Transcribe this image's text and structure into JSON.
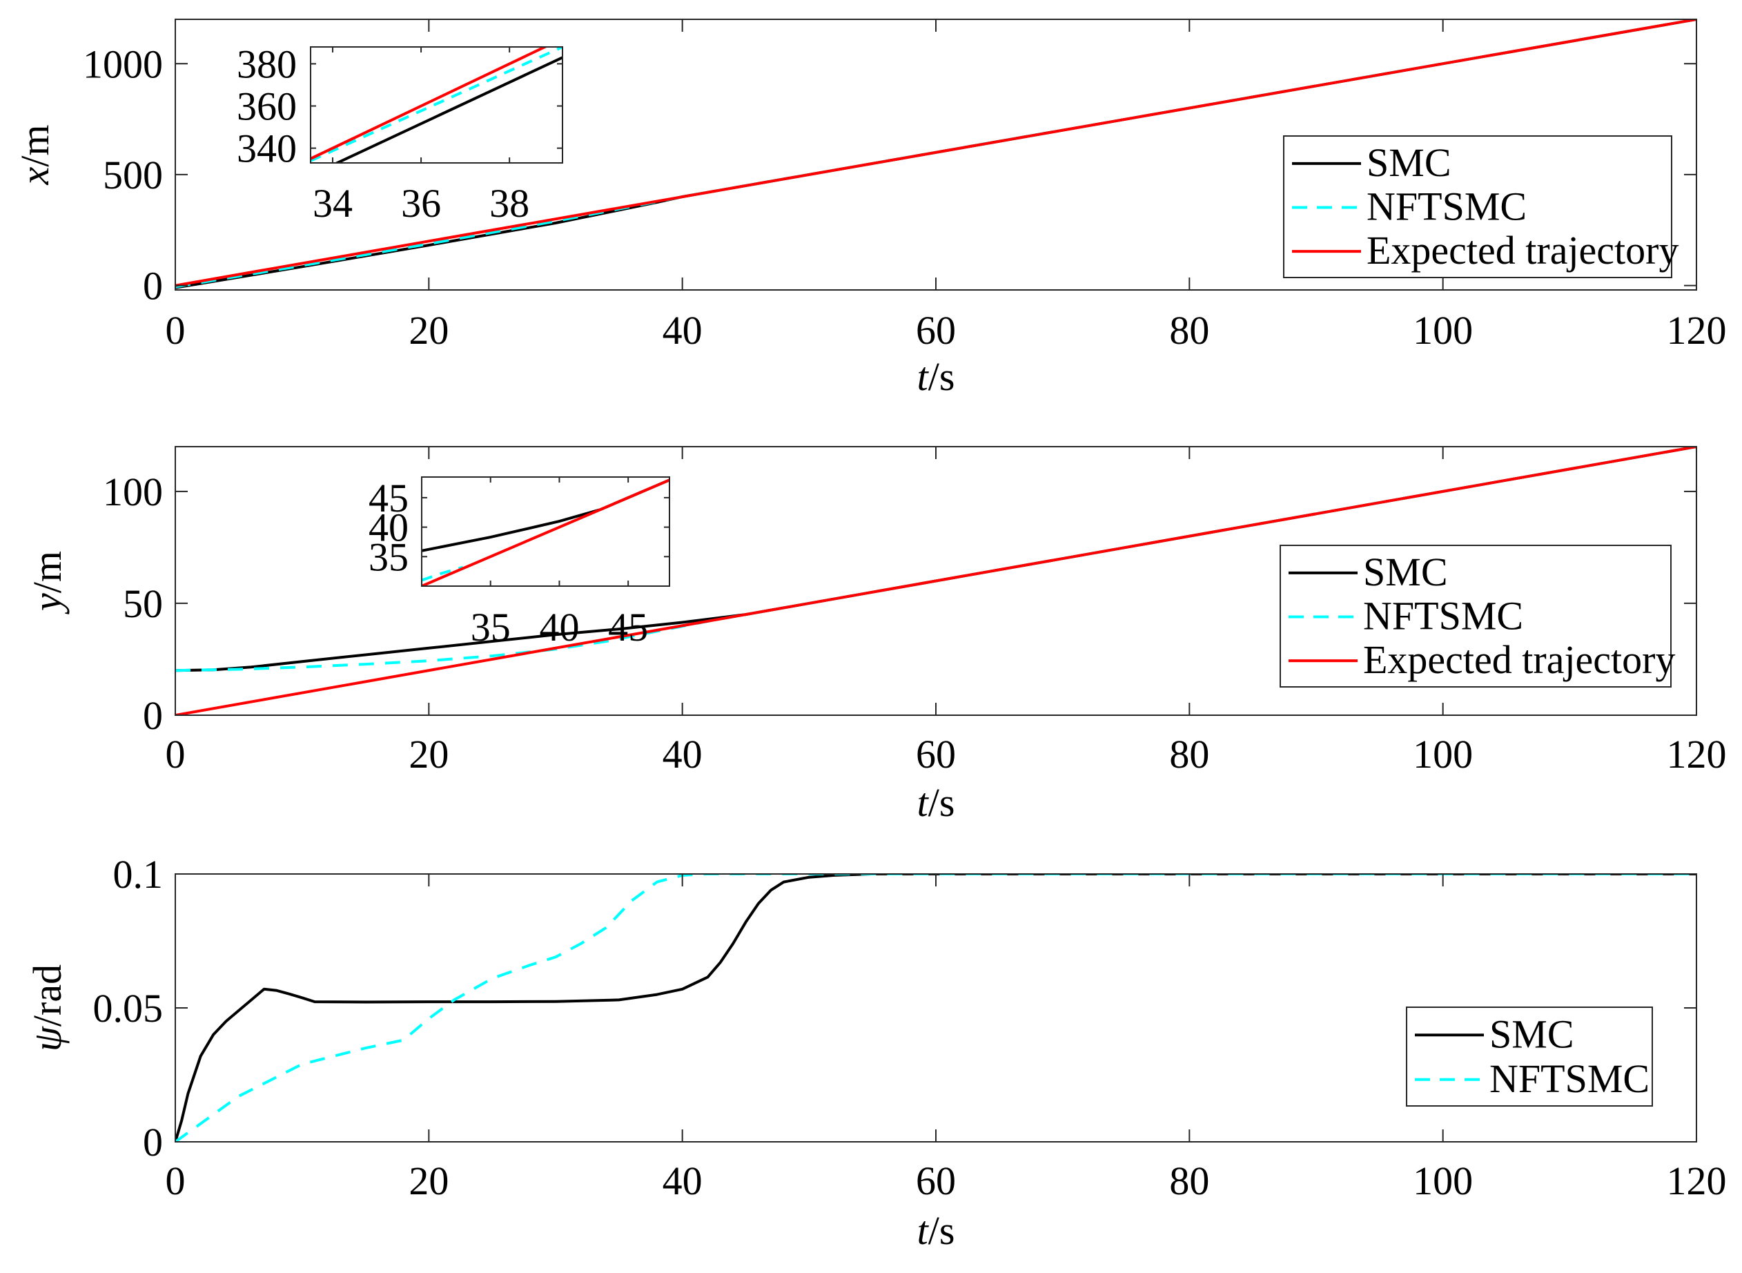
{
  "chart_data": [
    {
      "type": "line",
      "id": "x",
      "ylabel_var": "x",
      "ylabel_unit": "m",
      "xlabel_var": "t",
      "xlabel_unit": "s",
      "xlim": [
        0,
        120
      ],
      "ylim": [
        -20,
        1200
      ],
      "xticks": [
        0,
        20,
        40,
        60,
        80,
        100,
        120
      ],
      "yticks": [
        0,
        500,
        1000
      ],
      "legend": {
        "position": "right",
        "entries": [
          "SMC",
          "NFTSMC",
          "Expected trajectory"
        ]
      },
      "series": [
        {
          "name": "SMC",
          "color": "#000000",
          "dash": "solid",
          "x": [
            0,
            10,
            20,
            30,
            38,
            40,
            120
          ],
          "y": [
            -10,
            85,
            182,
            282,
            375,
            400,
            1200
          ]
        },
        {
          "name": "NFTSMC",
          "color": "#00ffff",
          "dash": "dashed",
          "x": [
            0,
            10,
            20,
            30,
            38,
            40,
            120
          ],
          "y": [
            -6,
            90,
            188,
            290,
            378,
            400,
            1200
          ]
        },
        {
          "name": "Expected trajectory",
          "color": "#ff0000",
          "dash": "solid",
          "x": [
            0,
            120
          ],
          "y": [
            0,
            1200
          ]
        }
      ],
      "inset": {
        "xlim": [
          33.5,
          39.2
        ],
        "ylim": [
          333,
          388
        ],
        "xticks": [
          34,
          36,
          38
        ],
        "yticks": [
          340,
          360,
          380
        ],
        "series": [
          {
            "name": "SMC",
            "x": [
              34,
              39.2
            ],
            "y": [
              332,
              383
            ]
          },
          {
            "name": "NFTSMC",
            "x": [
              33.5,
              39.2
            ],
            "y": [
              334,
              388
            ]
          },
          {
            "name": "Expected trajectory",
            "x": [
              33.5,
              39.2
            ],
            "y": [
              335,
              392
            ]
          }
        ]
      }
    },
    {
      "type": "line",
      "id": "y",
      "ylabel_var": "y",
      "ylabel_unit": "m",
      "xlabel_var": "t",
      "xlabel_unit": "s",
      "xlim": [
        0,
        120
      ],
      "ylim": [
        0,
        120
      ],
      "xticks": [
        0,
        20,
        40,
        60,
        80,
        100,
        120
      ],
      "yticks": [
        0,
        50,
        100
      ],
      "legend": {
        "position": "right",
        "entries": [
          "SMC",
          "NFTSMC",
          "Expected trajectory"
        ]
      },
      "series": [
        {
          "name": "SMC",
          "color": "#000000",
          "dash": "solid",
          "x": [
            0,
            3,
            6,
            10,
            15,
            20,
            25,
            30,
            35,
            40,
            45,
            48,
            120
          ],
          "y": [
            20,
            20.3,
            21.5,
            24,
            27,
            30,
            33,
            36,
            38.5,
            41.5,
            45,
            48,
            120
          ]
        },
        {
          "name": "NFTSMC",
          "color": "#00ffff",
          "dash": "dashed",
          "x": [
            0,
            5,
            10,
            15,
            20,
            25,
            30,
            34,
            38,
            42,
            45,
            48,
            120
          ],
          "y": [
            20,
            20.5,
            21.5,
            22.8,
            24.3,
            26.5,
            29.5,
            33,
            37.5,
            42,
            45,
            48,
            120
          ]
        },
        {
          "name": "Expected trajectory",
          "color": "#ff0000",
          "dash": "solid",
          "x": [
            0,
            120
          ],
          "y": [
            0,
            120
          ]
        }
      ],
      "inset": {
        "xlim": [
          30,
          48
        ],
        "ylim": [
          30,
          48.5
        ],
        "xticks": [
          35,
          40,
          45
        ],
        "yticks": [
          35,
          40,
          45
        ],
        "series": [
          {
            "name": "SMC",
            "x": [
              30,
              35,
              40,
              43,
              45,
              47,
              48
            ],
            "y": [
              36,
              38.3,
              41,
              43,
              45,
              47,
              48
            ]
          },
          {
            "name": "NFTSMC",
            "x": [
              30,
              31.5,
              33
            ],
            "y": [
              31,
              32.2,
              33.2
            ]
          },
          {
            "name": "Expected trajectory",
            "x": [
              30,
              48
            ],
            "y": [
              30,
              48
            ]
          }
        ]
      }
    },
    {
      "type": "line",
      "id": "psi",
      "ylabel_var": "ψ",
      "ylabel_unit": "rad",
      "xlabel_var": "t",
      "xlabel_unit": "s",
      "xlim": [
        0,
        120
      ],
      "ylim": [
        0,
        0.1
      ],
      "xticks": [
        0,
        20,
        40,
        60,
        80,
        100,
        120
      ],
      "yticks": [
        0,
        0.05,
        0.1
      ],
      "legend": {
        "position": "lower-right",
        "entries": [
          "SMC",
          "NFTSMC"
        ]
      },
      "series": [
        {
          "name": "SMC",
          "color": "#000000",
          "dash": "solid",
          "x": [
            0,
            0.5,
            1,
            2,
            3,
            4,
            5,
            6,
            7,
            8,
            9,
            10,
            11,
            15,
            20,
            25,
            30,
            35,
            38,
            40,
            42,
            43,
            44,
            45,
            46,
            47,
            48,
            50,
            52,
            55,
            60,
            120
          ],
          "y": [
            0,
            0.008,
            0.018,
            0.032,
            0.04,
            0.045,
            0.049,
            0.053,
            0.057,
            0.0565,
            0.0552,
            0.0538,
            0.0523,
            0.0522,
            0.0523,
            0.0523,
            0.0524,
            0.053,
            0.055,
            0.057,
            0.0615,
            0.067,
            0.074,
            0.082,
            0.089,
            0.094,
            0.097,
            0.0988,
            0.0995,
            0.1,
            0.1,
            0.1
          ]
        },
        {
          "name": "NFTSMC",
          "color": "#00ffff",
          "dash": "dashed",
          "x": [
            0,
            5,
            10,
            15,
            18,
            20,
            22,
            25,
            28,
            30,
            32,
            34,
            36,
            38,
            40,
            42,
            120
          ],
          "y": [
            0,
            0.017,
            0.029,
            0.035,
            0.038,
            0.046,
            0.053,
            0.061,
            0.066,
            0.069,
            0.074,
            0.08,
            0.09,
            0.097,
            0.0995,
            0.1,
            0.1
          ]
        }
      ]
    }
  ]
}
